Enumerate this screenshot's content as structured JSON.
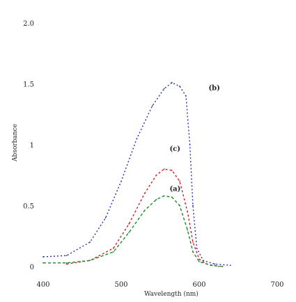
{
  "chart_data": {
    "type": "line",
    "title": "",
    "xlabel": "Wavelength (nm)",
    "ylabel": "Absorbance",
    "xlim": [
      400,
      700
    ],
    "ylim": [
      0,
      2.0
    ],
    "x_ticks": [
      "400",
      "500",
      "600",
      "700"
    ],
    "y_ticks": [
      "0",
      "0.5",
      "1",
      "1.5",
      "2.0"
    ],
    "grid": false,
    "legend": "none",
    "series": [
      {
        "name": "(b)",
        "color": "#2233aa",
        "dash": "2,3",
        "label_at": [
          612,
          1.45
        ],
        "points": [
          [
            400,
            0.08
          ],
          [
            430,
            0.09
          ],
          [
            460,
            0.2
          ],
          [
            480,
            0.4
          ],
          [
            500,
            0.7
          ],
          [
            520,
            1.05
          ],
          [
            540,
            1.32
          ],
          [
            555,
            1.46
          ],
          [
            565,
            1.51
          ],
          [
            575,
            1.48
          ],
          [
            583,
            1.4
          ],
          [
            588,
            1.0
          ],
          [
            592,
            0.5
          ],
          [
            597,
            0.15
          ],
          [
            605,
            0.05
          ],
          [
            620,
            0.02
          ],
          [
            640,
            0.01
          ]
        ]
      },
      {
        "name": "(c)",
        "color": "#cc2222",
        "dash": "3,3",
        "label_at": [
          562,
          0.95
        ],
        "points": [
          [
            430,
            0.02
          ],
          [
            460,
            0.05
          ],
          [
            490,
            0.15
          ],
          [
            510,
            0.35
          ],
          [
            530,
            0.6
          ],
          [
            545,
            0.75
          ],
          [
            555,
            0.8
          ],
          [
            565,
            0.79
          ],
          [
            575,
            0.7
          ],
          [
            585,
            0.45
          ],
          [
            592,
            0.2
          ],
          [
            600,
            0.06
          ],
          [
            610,
            0.02
          ],
          [
            625,
            0.0
          ]
        ]
      },
      {
        "name": "(a)",
        "color": "#1a8a2a",
        "dash": "4,3",
        "label_at": [
          562,
          0.62
        ],
        "points": [
          [
            400,
            0.03
          ],
          [
            430,
            0.03
          ],
          [
            460,
            0.05
          ],
          [
            490,
            0.12
          ],
          [
            510,
            0.28
          ],
          [
            530,
            0.46
          ],
          [
            545,
            0.55
          ],
          [
            555,
            0.58
          ],
          [
            565,
            0.57
          ],
          [
            575,
            0.5
          ],
          [
            585,
            0.3
          ],
          [
            592,
            0.12
          ],
          [
            600,
            0.04
          ],
          [
            615,
            0.01
          ],
          [
            630,
            0.0
          ]
        ]
      }
    ]
  }
}
